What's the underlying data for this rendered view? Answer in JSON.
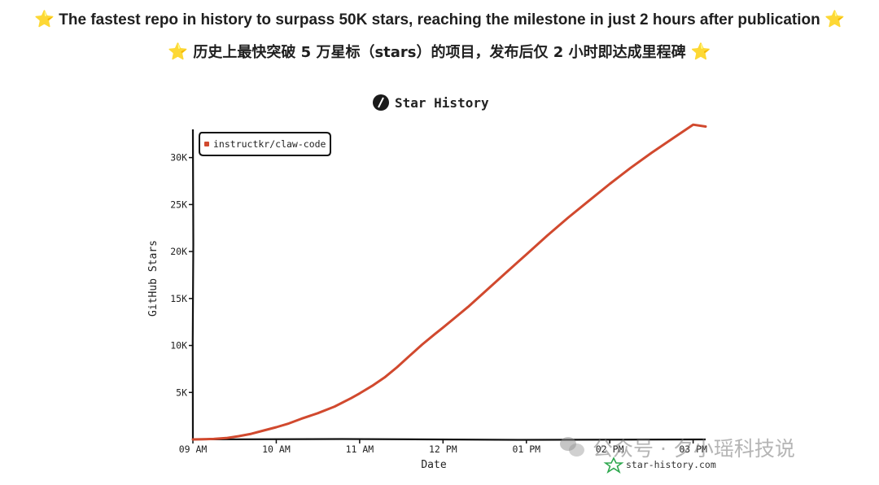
{
  "headline": {
    "en": "The fastest repo in history to surpass 50K stars, reaching the milestone in just 2 hours after publication",
    "zh": "历史上最快突破 5 万星标（stars）的项目，发布后仅 2 小时即达成里程碑",
    "star_glyph": "⭐"
  },
  "watermark": {
    "text": "公众号 · 夕小瑶科技说",
    "icon": "wechat-icon"
  },
  "chart_data": {
    "type": "line",
    "title": "Star History",
    "title_icon": "slash-badge-icon",
    "xlabel": "Date",
    "ylabel": "GitHub Stars",
    "x_ticks": [
      "09 AM",
      "10 AM",
      "11 AM",
      "12 PM",
      "01 PM",
      "02 PM",
      "03 PM"
    ],
    "y_ticks": [
      "5K",
      "10K",
      "15K",
      "20K",
      "25K",
      "30K"
    ],
    "y_tick_values": [
      5000,
      10000,
      15000,
      20000,
      25000,
      30000
    ],
    "xlim_hours": [
      9.0,
      15.15
    ],
    "ylim": [
      0,
      33000
    ],
    "grid": false,
    "legend_position": "top-left",
    "series": [
      {
        "name": "instructkr/claw-code",
        "color": "#d1492e",
        "x_hours": [
          9.0,
          9.25,
          9.4,
          9.55,
          9.7,
          9.85,
          10.0,
          10.15,
          10.3,
          10.5,
          10.7,
          10.9,
          11.0,
          11.15,
          11.3,
          11.45,
          11.6,
          11.75,
          11.9,
          12.0,
          12.15,
          12.3,
          12.5,
          12.75,
          13.0,
          13.25,
          13.5,
          13.75,
          14.0,
          14.25,
          14.5,
          14.75,
          15.0,
          15.15
        ],
        "values": [
          0,
          50,
          150,
          350,
          600,
          950,
          1300,
          1700,
          2200,
          2800,
          3500,
          4400,
          4900,
          5700,
          6600,
          7700,
          8900,
          10100,
          11200,
          11900,
          13000,
          14100,
          15700,
          17700,
          19700,
          21700,
          23600,
          25400,
          27200,
          28900,
          30500,
          32000,
          33500,
          33300
        ]
      }
    ],
    "source": "star-history.com",
    "source_icon": "star-outline-icon"
  }
}
